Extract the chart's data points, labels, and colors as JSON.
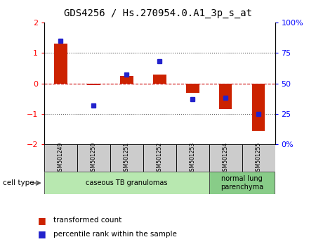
{
  "title": "GDS4256 / Hs.270954.0.A1_3p_s_at",
  "samples": [
    "GSM501249",
    "GSM501250",
    "GSM501251",
    "GSM501252",
    "GSM501253",
    "GSM501254",
    "GSM501255"
  ],
  "transformed_count": [
    1.3,
    -0.05,
    0.25,
    0.28,
    -0.3,
    -0.85,
    -1.55
  ],
  "percentile_rank": [
    85,
    32,
    57,
    68,
    37,
    38,
    25
  ],
  "ylim_left": [
    -2,
    2
  ],
  "ylim_right": [
    0,
    100
  ],
  "yticks_left": [
    -2,
    -1,
    0,
    1,
    2
  ],
  "yticks_right": [
    0,
    25,
    50,
    75,
    100
  ],
  "cell_groups": [
    {
      "label": "caseous TB granulomas",
      "start": 0,
      "end": 4,
      "color": "#b8e8b0"
    },
    {
      "label": "normal lung\nparenchyma",
      "start": 5,
      "end": 6,
      "color": "#88cc88"
    }
  ],
  "bar_color": "#cc2200",
  "dot_color": "#2222cc",
  "zero_line_color": "#cc0000",
  "dotted_line_color": "#555555",
  "tick_bg": "#cccccc",
  "legend_red_label": "transformed count",
  "legend_blue_label": "percentile rank within the sample",
  "cell_type_label": "cell type",
  "bar_width": 0.4,
  "dot_size": 5
}
